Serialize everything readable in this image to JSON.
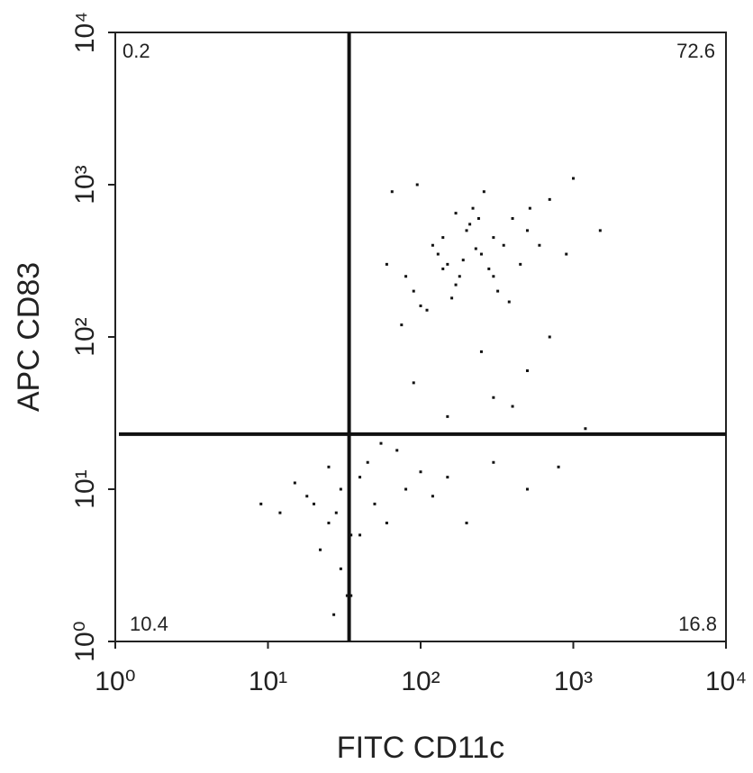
{
  "chart_data": {
    "type": "scatter",
    "x_label": "FITC CD11c",
    "y_label": "APC CD83",
    "log_x": true,
    "log_y": true,
    "xlim": [
      1,
      10000
    ],
    "ylim": [
      1,
      10000
    ],
    "xticks": [
      {
        "value": 1,
        "label": "10⁰"
      },
      {
        "value": 10,
        "label": "10¹"
      },
      {
        "value": 100,
        "label": "10²"
      },
      {
        "value": 1000,
        "label": "10³"
      },
      {
        "value": 10000,
        "label": "10⁴"
      }
    ],
    "yticks": [
      {
        "value": 1,
        "label": "10⁰"
      },
      {
        "value": 10,
        "label": "10¹"
      },
      {
        "value": 100,
        "label": "10²"
      },
      {
        "value": 1000,
        "label": "10³"
      },
      {
        "value": 10000,
        "label": "10⁴"
      }
    ],
    "quadrant_x": 34,
    "quadrant_y": 23,
    "quadrant_percent": {
      "upper_left": 0.2,
      "upper_right": 72.6,
      "lower_left": 10.4,
      "lower_right": 16.8
    },
    "color": "#111111",
    "x": [
      120,
      150,
      200,
      250,
      300,
      180,
      90,
      60,
      400,
      500,
      220,
      160,
      130,
      280,
      350,
      110,
      80,
      700,
      1000,
      240,
      190,
      170,
      140,
      320,
      260,
      450,
      600,
      75,
      100,
      210,
      230,
      170,
      300,
      380,
      140,
      520,
      900,
      1500,
      65,
      95,
      20,
      25,
      30,
      35,
      40,
      18,
      22,
      28,
      45,
      50,
      15,
      60,
      80,
      100,
      120,
      30,
      25,
      35,
      40,
      55,
      12,
      9,
      70,
      150,
      200,
      300,
      500,
      800,
      33,
      27,
      300,
      500,
      150,
      700,
      250,
      90,
      1200,
      400
    ],
    "y": [
      400,
      300,
      500,
      350,
      450,
      250,
      200,
      300,
      600,
      500,
      700,
      180,
      350,
      280,
      400,
      150,
      250,
      800,
      1100,
      600,
      320,
      220,
      450,
      200,
      900,
      300,
      400,
      120,
      160,
      550,
      380,
      650,
      250,
      170,
      280,
      700,
      350,
      500,
      900,
      1000,
      8,
      6,
      10,
      5,
      12,
      9,
      4,
      7,
      15,
      8,
      11,
      6,
      10,
      13,
      9,
      3,
      14,
      2,
      5,
      20,
      7,
      8,
      18,
      12,
      6,
      15,
      10,
      14,
      2,
      1.5,
      40,
      60,
      30,
      100,
      80,
      50,
      25,
      35
    ]
  }
}
